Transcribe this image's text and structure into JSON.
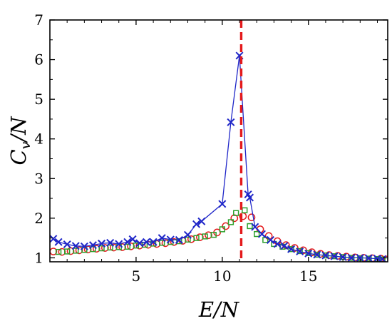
{
  "chart_data": {
    "type": "scatter",
    "title": "",
    "xlabel": "E/N",
    "ylabel": "C_v/N",
    "xlim": [
      0,
      19.6
    ],
    "ylim": [
      0.9,
      7
    ],
    "xticks": [
      5,
      10,
      15
    ],
    "yticks": [
      1,
      2,
      3,
      4,
      5,
      6,
      7
    ],
    "grid": false,
    "legend": "none",
    "vline": {
      "x": 11.1,
      "color": "#e41a1c"
    },
    "series": [
      {
        "marker": "x",
        "color": "#1f26c8",
        "line": true,
        "x": [
          0.2,
          0.5,
          1.0,
          1.5,
          2.0,
          2.5,
          3.0,
          3.5,
          4.0,
          4.5,
          4.8,
          5.2,
          5.6,
          6.0,
          6.5,
          7.0,
          7.5,
          8.0,
          8.5,
          8.8,
          10.0,
          10.5,
          11.0,
          11.5,
          11.6,
          11.9,
          12.3,
          12.8,
          13.2,
          13.6,
          14.0,
          14.5,
          15.0,
          15.5,
          16.0,
          16.5,
          17.0,
          17.5,
          18.0,
          18.5,
          19.0,
          19.3
        ],
        "y": [
          1.48,
          1.4,
          1.34,
          1.3,
          1.29,
          1.32,
          1.36,
          1.38,
          1.35,
          1.4,
          1.47,
          1.37,
          1.4,
          1.4,
          1.5,
          1.46,
          1.45,
          1.58,
          1.85,
          1.92,
          2.36,
          4.42,
          6.1,
          2.6,
          2.52,
          1.78,
          1.6,
          1.45,
          1.35,
          1.3,
          1.22,
          1.16,
          1.11,
          1.08,
          1.06,
          1.04,
          1.02,
          1.0,
          1.0,
          0.99,
          0.98,
          0.97
        ]
      },
      {
        "marker": "square",
        "color": "#2ca02c",
        "x": [
          0.5,
          1.0,
          1.5,
          2.0,
          2.5,
          3.0,
          3.5,
          4.0,
          4.5,
          5.0,
          5.5,
          6.0,
          6.5,
          7.0,
          7.5,
          8.0,
          8.5,
          9.0,
          9.5,
          10.0,
          10.5,
          10.8,
          11.3,
          11.6,
          12.0,
          12.5,
          13.0,
          13.5,
          14.0,
          14.5,
          15.0,
          15.5,
          16.0,
          16.5,
          17.0,
          17.5,
          18.0,
          18.5,
          19.0,
          19.3
        ],
        "y": [
          1.15,
          1.16,
          1.18,
          1.2,
          1.22,
          1.24,
          1.26,
          1.27,
          1.28,
          1.31,
          1.33,
          1.36,
          1.38,
          1.4,
          1.42,
          1.46,
          1.5,
          1.54,
          1.58,
          1.72,
          1.9,
          2.13,
          2.2,
          1.8,
          1.6,
          1.45,
          1.35,
          1.28,
          1.22,
          1.17,
          1.12,
          1.08,
          1.06,
          1.04,
          1.02,
          1.0,
          0.99,
          0.98,
          0.97,
          0.96
        ]
      },
      {
        "marker": "circle",
        "color": "#e41a1c",
        "x": [
          0.2,
          0.7,
          1.2,
          1.7,
          2.2,
          2.7,
          3.2,
          3.7,
          4.2,
          4.7,
          5.2,
          5.7,
          6.2,
          6.7,
          7.2,
          7.7,
          8.2,
          8.7,
          9.2,
          9.7,
          10.2,
          10.7,
          11.2,
          11.7,
          12.2,
          12.7,
          13.2,
          13.7,
          14.2,
          14.7,
          15.2,
          15.7,
          16.2,
          16.7,
          17.2,
          17.7,
          18.2,
          18.7,
          19.2,
          19.5
        ],
        "y": [
          1.16,
          1.15,
          1.17,
          1.19,
          1.21,
          1.23,
          1.25,
          1.26,
          1.27,
          1.29,
          1.31,
          1.33,
          1.35,
          1.37,
          1.4,
          1.43,
          1.47,
          1.52,
          1.57,
          1.64,
          1.8,
          2.0,
          2.05,
          2.02,
          1.72,
          1.55,
          1.42,
          1.32,
          1.25,
          1.19,
          1.14,
          1.1,
          1.07,
          1.05,
          1.03,
          1.01,
          1.0,
          0.99,
          0.98,
          0.96
        ]
      }
    ]
  }
}
